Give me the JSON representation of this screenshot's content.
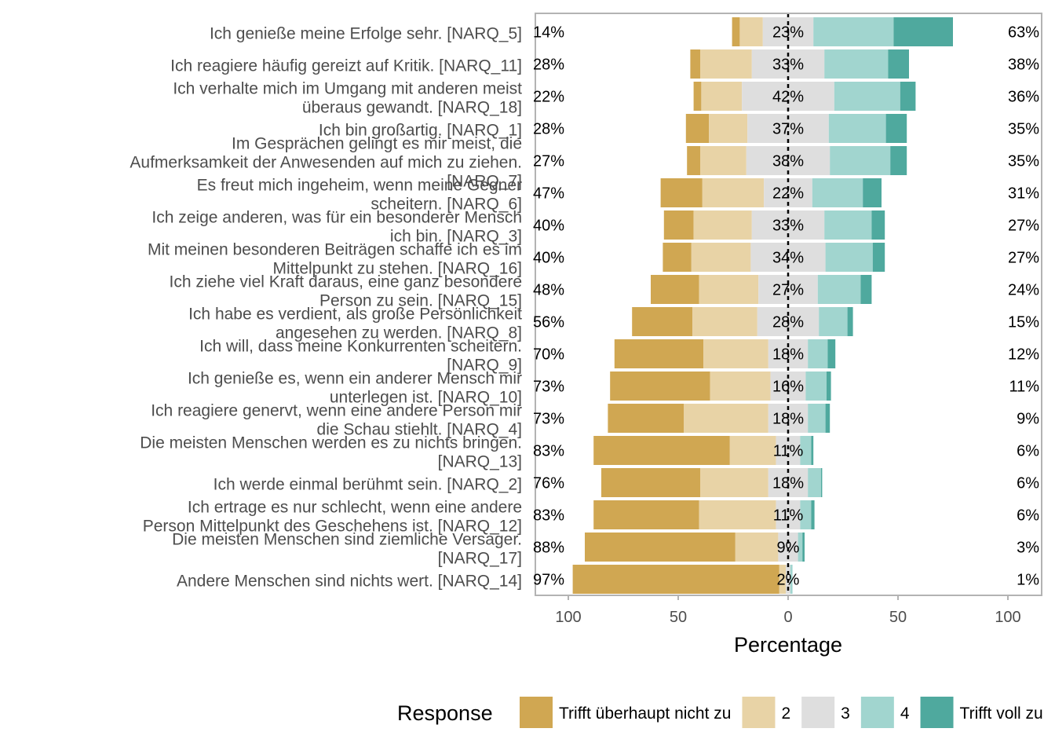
{
  "chart_data": {
    "type": "bar",
    "orientation": "horizontal-diverging",
    "xlabel": "Percentage",
    "xlim": [
      -100,
      100
    ],
    "xticks": [
      "100",
      "50",
      "0",
      "50",
      "100"
    ],
    "grid": false,
    "legend": {
      "title": "Response",
      "position": "bottom",
      "entries": [
        "Trifft überhaupt nicht zu",
        "2",
        "3",
        "4",
        "Trifft voll zu"
      ]
    },
    "colors": [
      "#D0A752",
      "#E8D3A6",
      "#DEDEDE",
      "#A1D5CF",
      "#4FA99E"
    ],
    "categories": [
      [
        "Ich genieße meine Erfolge sehr. [NARQ_5]"
      ],
      [
        "Ich reagiere häufig gereizt auf Kritik. [NARQ_11]"
      ],
      [
        "Ich verhalte mich im Umgang mit anderen meist",
        "überaus gewandt. [NARQ_18]"
      ],
      [
        "Ich bin großartig. [NARQ_1]"
      ],
      [
        "Im Gesprächen gelingt es mir meist, die",
        "Aufmerksamkeit der Anwesenden auf mich zu ziehen.",
        "[NARQ_7]"
      ],
      [
        "Es freut mich ingeheim, wenn meine Gegner",
        "scheitern. [NARQ_6]"
      ],
      [
        "Ich zeige anderen, was für ein besonderer Mensch",
        "ich bin. [NARQ_3]"
      ],
      [
        "Mit meinen besonderen Beiträgen schaffe ich es im",
        "Mittelpunkt zu stehen. [NARQ_16]"
      ],
      [
        "Ich ziehe viel Kraft daraus, eine ganz besondere",
        "Person zu sein. [NARQ_15]"
      ],
      [
        "Ich habe es verdient, als große Persönlichkeit",
        "angesehen zu werden. [NARQ_8]"
      ],
      [
        "Ich will, dass meine Konkurrenten scheitern.",
        "[NARQ_9]"
      ],
      [
        "Ich genieße es, wenn ein anderer Mensch mir",
        "unterlegen ist. [NARQ_10]"
      ],
      [
        "Ich reagiere genervt, wenn eine andere Person mir",
        "die Schau stiehlt. [NARQ_4]"
      ],
      [
        "Die meisten Menschen werden es zu nichts bringen.",
        "[NARQ_13]"
      ],
      [
        "Ich werde einmal berühmt sein. [NARQ_2]"
      ],
      [
        "Ich ertrage es nur schlecht, wenn eine andere",
        "Person Mittelpunkt des Geschehens ist. [NARQ_12]"
      ],
      [
        "Die meisten Menschen sind ziemliche Versager.",
        "[NARQ_17]"
      ],
      [
        "Andere Menschen sind nichts wert. [NARQ_14]"
      ]
    ],
    "series": [
      {
        "name": "Trifft überhaupt nicht zu",
        "values": [
          3.5,
          4.5,
          3.5,
          10.5,
          6,
          19,
          13.5,
          13,
          22,
          27.5,
          40.5,
          45.5,
          34.5,
          62,
          45,
          48,
          68.5,
          94
        ]
      },
      {
        "name": "2",
        "values": [
          10.5,
          23.5,
          18.5,
          17.5,
          21,
          28,
          26.5,
          27,
          27,
          29.5,
          29.5,
          27.5,
          38.5,
          21,
          31,
          35,
          19.5,
          3
        ]
      },
      {
        "name": "3",
        "values": [
          23,
          33,
          42,
          37,
          38,
          22,
          33,
          34,
          27,
          28,
          18,
          16,
          18,
          11,
          18,
          11,
          9,
          2
        ]
      },
      {
        "name": "4",
        "values": [
          36.5,
          29,
          30,
          26,
          27.5,
          23,
          21.5,
          21.5,
          19.5,
          13,
          9,
          9.5,
          8,
          5,
          6,
          5,
          2,
          1
        ]
      },
      {
        "name": "Trifft voll zu",
        "values": [
          27,
          9.5,
          7,
          9.5,
          7.5,
          8.5,
          6,
          5.5,
          5,
          2.5,
          3.5,
          2,
          2,
          1,
          0.5,
          1.5,
          1,
          0
        ]
      }
    ],
    "low_labels": [
      "14%",
      "28%",
      "22%",
      "28%",
      "27%",
      "47%",
      "40%",
      "40%",
      "48%",
      "56%",
      "70%",
      "73%",
      "73%",
      "83%",
      "76%",
      "83%",
      "88%",
      "97%"
    ],
    "mid_labels": [
      "23%",
      "33%",
      "42%",
      "37%",
      "38%",
      "22%",
      "33%",
      "34%",
      "27%",
      "28%",
      "18%",
      "16%",
      "18%",
      "11%",
      "18%",
      "11%",
      "9%",
      "2%"
    ],
    "high_labels": [
      "63%",
      "38%",
      "36%",
      "35%",
      "35%",
      "31%",
      "27%",
      "27%",
      "24%",
      "15%",
      "12%",
      "11%",
      "9%",
      "6%",
      "6%",
      "6%",
      "3%",
      "1%"
    ]
  }
}
